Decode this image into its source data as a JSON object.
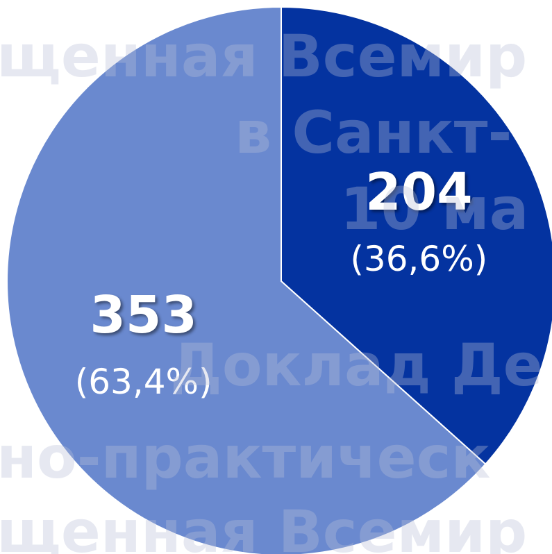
{
  "chart_data": {
    "type": "pie",
    "values": [
      204,
      353
    ],
    "percent_labels": [
      "(36,6%)",
      "(63,4%)"
    ],
    "colors": [
      "#0433a0",
      "#6a89cf"
    ]
  },
  "watermark": [
    "щенная Всемир",
    "в Санкт-",
    "10 ма",
    "Доклад Де",
    "но-практическ",
    "щенная Всемир"
  ]
}
